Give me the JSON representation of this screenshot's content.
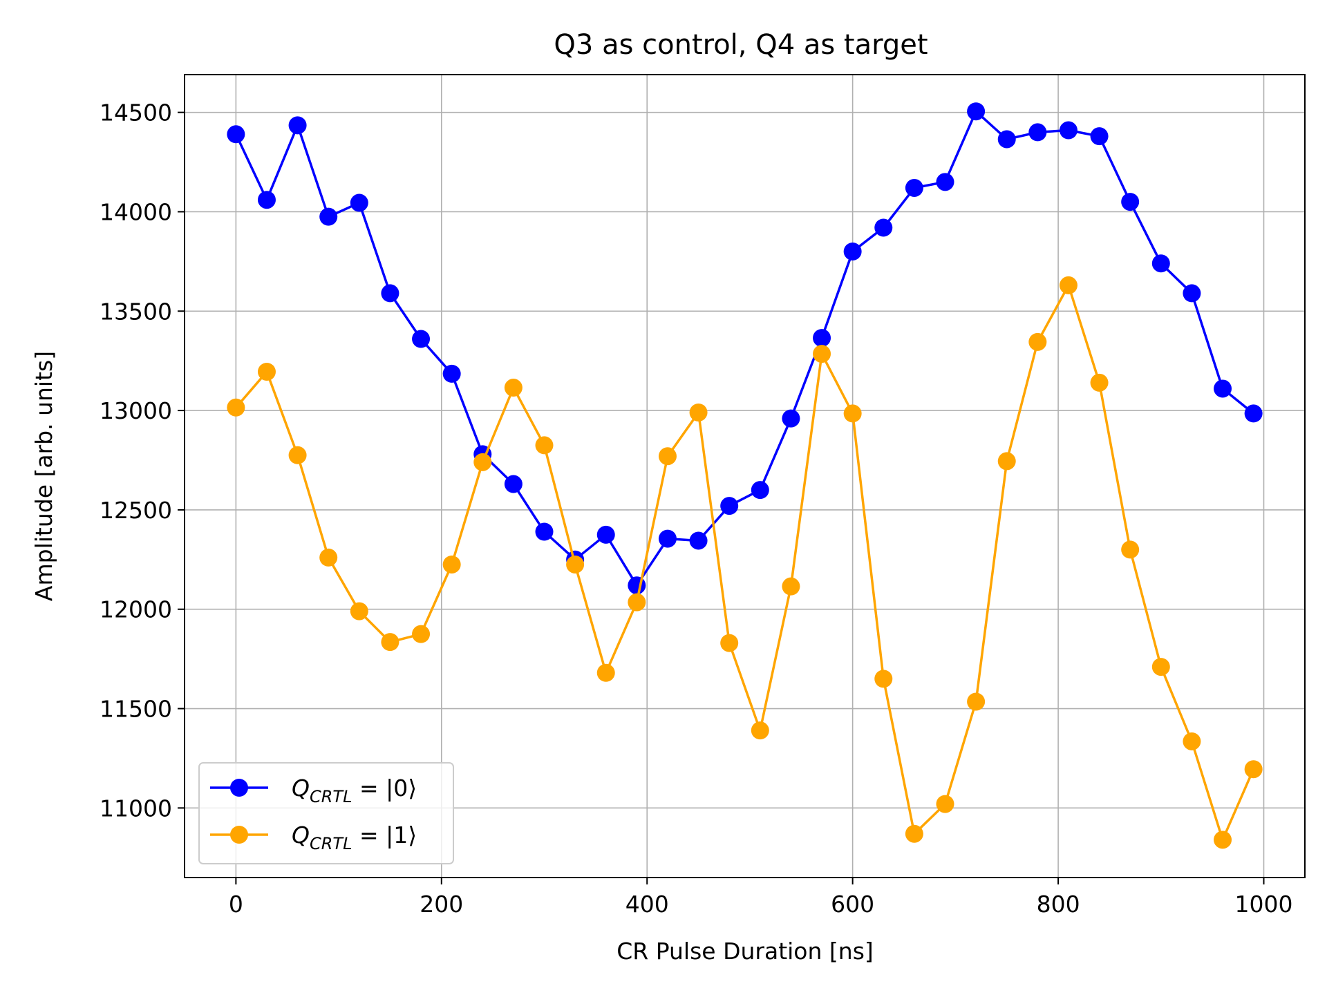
{
  "chart_data": {
    "type": "line",
    "title": "Q3 as control, Q4 as target",
    "xlabel": "CR Pulse Duration [ns]",
    "ylabel": "Amplitude [arb. units]",
    "xlim": [
      -50,
      1040
    ],
    "ylim": [
      10650,
      14690
    ],
    "xticks": [
      0,
      200,
      400,
      600,
      800,
      1000
    ],
    "yticks": [
      11000,
      11500,
      12000,
      12500,
      13000,
      13500,
      14000,
      14500
    ],
    "grid": true,
    "legend_position": "lower-left",
    "x": [
      0,
      30,
      60,
      90,
      120,
      150,
      180,
      210,
      240,
      270,
      300,
      330,
      360,
      390,
      420,
      450,
      480,
      510,
      540,
      570,
      600,
      630,
      660,
      690,
      720,
      750,
      780,
      810,
      840,
      870,
      900,
      930,
      960,
      990
    ],
    "series": [
      {
        "name_main": "Q",
        "name_sub": "CRTL",
        "name_rest": " = |0⟩",
        "color": "#0000ff",
        "values": [
          14390,
          14060,
          14435,
          13975,
          14045,
          13590,
          13360,
          13185,
          12780,
          12630,
          12390,
          12250,
          12375,
          12120,
          12355,
          12345,
          12520,
          12600,
          12960,
          13365,
          13800,
          13920,
          14120,
          14150,
          14505,
          14365,
          14400,
          14410,
          14380,
          14050,
          13740,
          13590,
          13110,
          12985
        ]
      },
      {
        "name_main": "Q",
        "name_sub": "CRTL",
        "name_rest": " = |1⟩",
        "color": "#ffa500",
        "values": [
          13015,
          13195,
          12775,
          12260,
          11990,
          11835,
          11875,
          12225,
          12740,
          13115,
          12825,
          12225,
          11680,
          12035,
          12770,
          12990,
          11830,
          11390,
          12115,
          13285,
          12985,
          11650,
          10870,
          11020,
          11535,
          12745,
          13345,
          13630,
          13140,
          12300,
          11710,
          11335,
          10840,
          11195
        ]
      }
    ]
  }
}
